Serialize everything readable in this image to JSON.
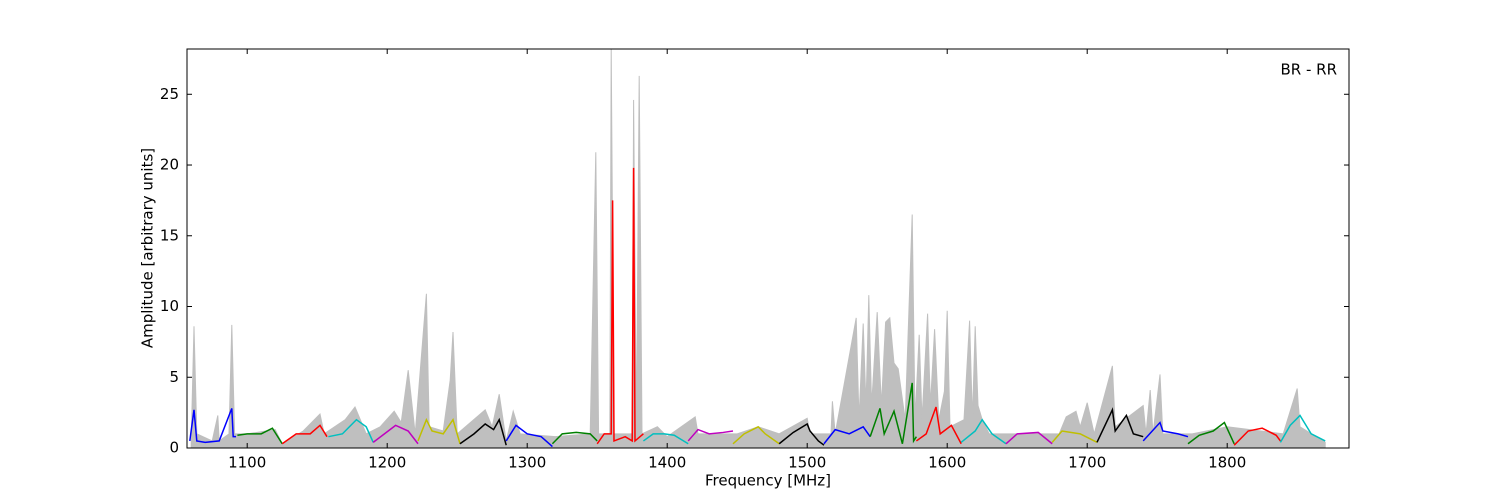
{
  "chart_data": {
    "type": "line",
    "annotation": "BR - RR",
    "xlabel": "Frequency [MHz]",
    "ylabel": "Amplitude [arbitrary units]",
    "xlim": [
      1057,
      1887
    ],
    "ylim": [
      0,
      28.2
    ],
    "xticks": [
      1100,
      1200,
      1300,
      1400,
      1500,
      1600,
      1700,
      1800
    ],
    "yticks": [
      0,
      5,
      10,
      15,
      20,
      25
    ],
    "series": [
      {
        "color": "#bfbfbf",
        "fill": true,
        "x": [
          1060,
          1062,
          1064,
          1075,
          1079,
          1080,
          1087,
          1089,
          1091,
          1100,
          1120,
          1125,
          1140,
          1152,
          1155,
          1170,
          1177,
          1185,
          1195,
          1205,
          1210,
          1215,
          1220,
          1228,
          1230,
          1240,
          1245,
          1247,
          1250,
          1270,
          1275,
          1280,
          1285,
          1290,
          1295,
          1320,
          1345,
          1349,
          1351,
          1359,
          1360,
          1362,
          1375,
          1376,
          1378,
          1380,
          1382,
          1393,
          1400,
          1420,
          1422,
          1450,
          1465,
          1480,
          1500,
          1502,
          1517,
          1518,
          1520,
          1535,
          1537,
          1540,
          1542,
          1544,
          1546,
          1550,
          1553,
          1556,
          1559,
          1562,
          1565,
          1570,
          1575,
          1577,
          1580,
          1582,
          1586,
          1588,
          1591,
          1594,
          1598,
          1600,
          1602,
          1612,
          1616,
          1618,
          1620,
          1622,
          1625,
          1630,
          1680,
          1685,
          1692,
          1695,
          1700,
          1705,
          1718,
          1720,
          1740,
          1742,
          1745,
          1747,
          1752,
          1754,
          1775,
          1800,
          1840,
          1850,
          1852,
          1870
        ],
        "values": [
          0.5,
          8.6,
          1,
          0.5,
          2.3,
          0.5,
          1,
          8.7,
          1,
          1,
          1.3,
          0.3,
          1.2,
          2.4,
          1,
          2,
          2.9,
          1,
          1.5,
          2.6,
          1.8,
          5.5,
          1,
          10.9,
          1.5,
          1.2,
          4.8,
          8.2,
          1,
          2.7,
          1.5,
          3.8,
          0.5,
          2.6,
          1,
          0.8,
          1,
          20.9,
          1,
          1,
          28.2,
          1,
          1,
          24.6,
          1,
          26.3,
          1,
          1.5,
          0.8,
          2.2,
          1,
          1,
          1.5,
          1,
          2.1,
          1,
          1,
          3.3,
          1,
          9.2,
          2,
          8.8,
          3,
          10.8,
          3,
          9.6,
          3,
          8.9,
          9.2,
          6,
          5.6,
          2,
          16.5,
          2,
          8,
          2,
          9.5,
          3,
          8.4,
          2,
          4,
          9.7,
          1.5,
          2,
          9,
          2,
          8.6,
          3,
          2,
          1,
          1,
          2.2,
          2.6,
          1.5,
          3.2,
          1,
          5.8,
          1.5,
          3,
          1,
          4.1,
          1,
          5.2,
          1,
          1,
          1.5,
          1,
          4.2,
          1.5,
          0.4
        ]
      },
      {
        "color": "#0000ff",
        "x": [
          1059,
          1062,
          1064,
          1070,
          1080,
          1089,
          1090,
          1092
        ],
        "values": [
          0.5,
          2.7,
          0.5,
          0.4,
          0.5,
          2.8,
          0.8,
          0.8
        ]
      },
      {
        "color": "#008000",
        "x": [
          1093,
          1100,
          1110,
          1118,
          1125
        ],
        "values": [
          0.9,
          1,
          1,
          1.4,
          0.3
        ]
      },
      {
        "color": "#ff0000",
        "x": [
          1125,
          1135,
          1145,
          1152,
          1157
        ],
        "values": [
          0.3,
          1,
          1,
          1.6,
          0.8
        ]
      },
      {
        "color": "#00bfbf",
        "x": [
          1158,
          1168,
          1178,
          1185,
          1190
        ],
        "values": [
          0.8,
          1,
          2,
          1.5,
          0.4
        ]
      },
      {
        "color": "#bf00bf",
        "x": [
          1190,
          1198,
          1206,
          1215,
          1222
        ],
        "values": [
          0.4,
          1,
          1.6,
          1.2,
          0.3
        ]
      },
      {
        "color": "#bfbf00",
        "x": [
          1222,
          1228,
          1232,
          1240,
          1247,
          1252
        ],
        "values": [
          0.5,
          2,
          1.2,
          1,
          2,
          0.3
        ]
      },
      {
        "color": "#000000",
        "x": [
          1252,
          1262,
          1270,
          1276,
          1280,
          1285
        ],
        "values": [
          0.3,
          1,
          1.7,
          1.3,
          2,
          0.2
        ]
      },
      {
        "color": "#0000ff",
        "x": [
          1285,
          1292,
          1300,
          1310,
          1318
        ],
        "values": [
          0.5,
          1.6,
          1,
          0.8,
          0.1
        ]
      },
      {
        "color": "#008000",
        "x": [
          1318,
          1325,
          1335,
          1345,
          1350
        ],
        "values": [
          0.3,
          1,
          1.1,
          1,
          0.5
        ]
      },
      {
        "color": "#ff0000",
        "x": [
          1350,
          1355,
          1360,
          1361,
          1362,
          1370,
          1375,
          1376,
          1377,
          1383
        ],
        "values": [
          0.3,
          1,
          1,
          17.5,
          0.5,
          0.8,
          0.5,
          19.8,
          0.5,
          1
        ]
      },
      {
        "color": "#00bfbf",
        "x": [
          1383,
          1390,
          1398,
          1405,
          1410,
          1415
        ],
        "values": [
          0.5,
          1,
          1,
          0.9,
          0.6,
          0.3
        ]
      },
      {
        "color": "#bf00bf",
        "x": [
          1415,
          1422,
          1430,
          1440,
          1447
        ],
        "values": [
          0.5,
          1.3,
          1,
          1.1,
          1.2
        ]
      },
      {
        "color": "#bfbf00",
        "x": [
          1447,
          1455,
          1465,
          1470,
          1480
        ],
        "values": [
          0.3,
          1,
          1.5,
          1,
          0.3
        ]
      },
      {
        "color": "#000000",
        "x": [
          1480,
          1490,
          1500,
          1502,
          1508,
          1512
        ],
        "values": [
          0.3,
          1.1,
          1.7,
          1.2,
          0.5,
          0.2
        ]
      },
      {
        "color": "#0000ff",
        "x": [
          1512,
          1520,
          1530,
          1540,
          1545
        ],
        "values": [
          0.3,
          1.3,
          1,
          1.5,
          0.8
        ]
      },
      {
        "color": "#008000",
        "x": [
          1545,
          1552,
          1555,
          1562,
          1568,
          1575,
          1576,
          1578
        ],
        "values": [
          0.8,
          2.8,
          1,
          2.6,
          0.3,
          4.6,
          0.5,
          0.8
        ]
      },
      {
        "color": "#ff0000",
        "x": [
          1578,
          1585,
          1592,
          1595,
          1603,
          1610
        ],
        "values": [
          0.5,
          1,
          2.9,
          1,
          1.6,
          0.3
        ]
      },
      {
        "color": "#00bfbf",
        "x": [
          1610,
          1620,
          1625,
          1632,
          1642
        ],
        "values": [
          0.4,
          1.2,
          2,
          1,
          0.3
        ]
      },
      {
        "color": "#bf00bf",
        "x": [
          1642,
          1650,
          1665,
          1675
        ],
        "values": [
          0.3,
          1,
          1.1,
          0.3
        ]
      },
      {
        "color": "#bfbf00",
        "x": [
          1675,
          1682,
          1695,
          1707
        ],
        "values": [
          0.4,
          1.2,
          1,
          0.4
        ]
      },
      {
        "color": "#000000",
        "x": [
          1707,
          1718,
          1720,
          1728,
          1733,
          1740
        ],
        "values": [
          0.4,
          2.7,
          1.2,
          2.3,
          1,
          0.8
        ]
      },
      {
        "color": "#0000ff",
        "x": [
          1740,
          1752,
          1754,
          1765,
          1772
        ],
        "values": [
          0.5,
          1.8,
          1.2,
          1,
          0.8
        ]
      },
      {
        "color": "#008000",
        "x": [
          1772,
          1780,
          1790,
          1798,
          1805
        ],
        "values": [
          0.3,
          0.9,
          1.2,
          1.8,
          0.3
        ]
      },
      {
        "color": "#ff0000",
        "x": [
          1805,
          1815,
          1825,
          1835,
          1838
        ],
        "values": [
          0.2,
          1.2,
          1.4,
          0.9,
          0.5
        ]
      },
      {
        "color": "#00bfbf",
        "x": [
          1838,
          1845,
          1852,
          1860,
          1870
        ],
        "values": [
          0.4,
          1.6,
          2.3,
          1,
          0.5
        ]
      }
    ]
  }
}
